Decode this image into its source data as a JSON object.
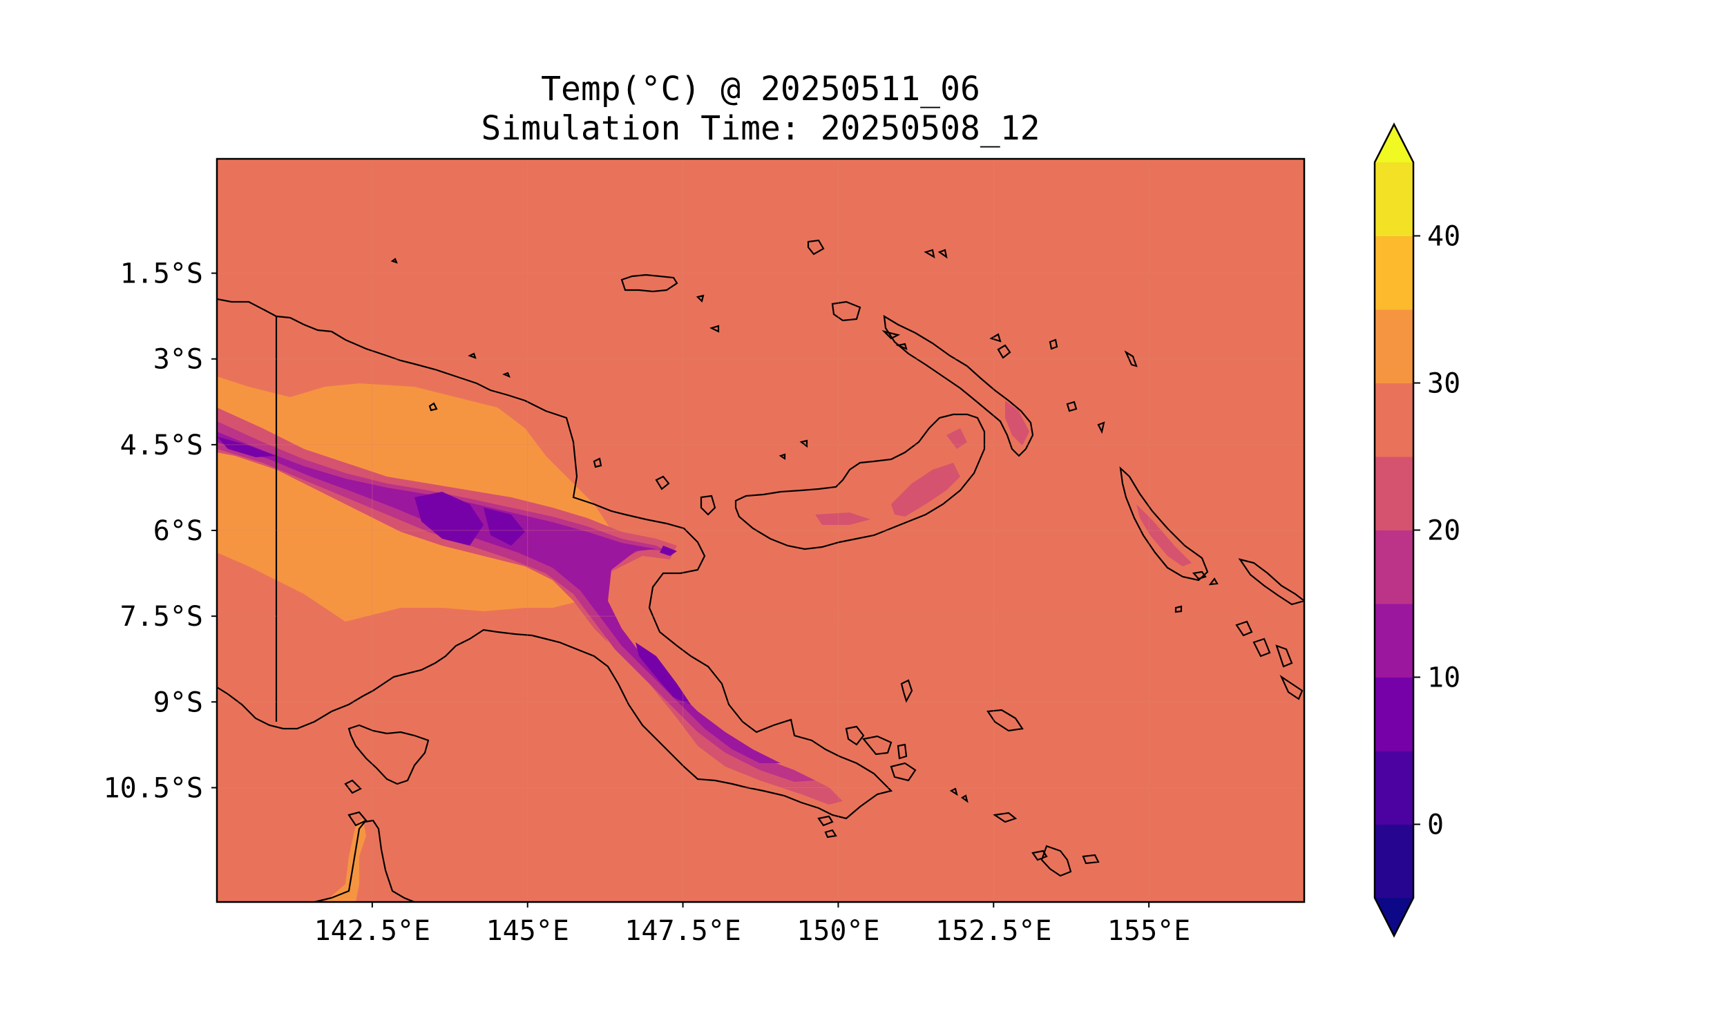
{
  "title": {
    "line1": "Temp(°C) @ 20250511_06",
    "line2": "Simulation Time: 20250508_12"
  },
  "map": {
    "region": "Papua New Guinea",
    "projection": "PlateCarree",
    "lon_range": [
      140.0,
      157.5
    ],
    "lat_range": [
      -12.5,
      0.5
    ],
    "background_color": "#e9735a",
    "x_ticks": [
      {
        "value": 142.5,
        "label": "142.5°E"
      },
      {
        "value": 145.0,
        "label": "145°E"
      },
      {
        "value": 147.5,
        "label": "147.5°E"
      },
      {
        "value": 150.0,
        "label": "150°E"
      },
      {
        "value": 152.5,
        "label": "152.5°E"
      },
      {
        "value": 155.0,
        "label": "155°E"
      }
    ],
    "y_ticks": [
      {
        "value": -1.5,
        "label": "1.5°S"
      },
      {
        "value": -3.0,
        "label": "3°S"
      },
      {
        "value": -4.5,
        "label": "4.5°S"
      },
      {
        "value": -6.0,
        "label": "6°S"
      },
      {
        "value": -7.5,
        "label": "7.5°S"
      },
      {
        "value": -9.0,
        "label": "9°S"
      },
      {
        "value": -10.5,
        "label": "10.5°S"
      }
    ]
  },
  "colorbar": {
    "colormap": "plasma",
    "extend": "both",
    "min": -5,
    "max": 45,
    "levels": [
      -5,
      0,
      5,
      10,
      15,
      20,
      25,
      30,
      35,
      40,
      45
    ],
    "colors": [
      "#260591",
      "#4c02a1",
      "#7701a8",
      "#9b179e",
      "#bb3488",
      "#d5536f",
      "#e9735a",
      "#f69541",
      "#fcba2c",
      "#f3e125"
    ],
    "under_color": "#0d0887",
    "over_color": "#f0f921",
    "ticks": [
      {
        "value": 0,
        "label": "0"
      },
      {
        "value": 10,
        "label": "10"
      },
      {
        "value": 20,
        "label": "20"
      },
      {
        "value": 30,
        "label": "30"
      },
      {
        "value": 40,
        "label": "40"
      }
    ]
  }
}
